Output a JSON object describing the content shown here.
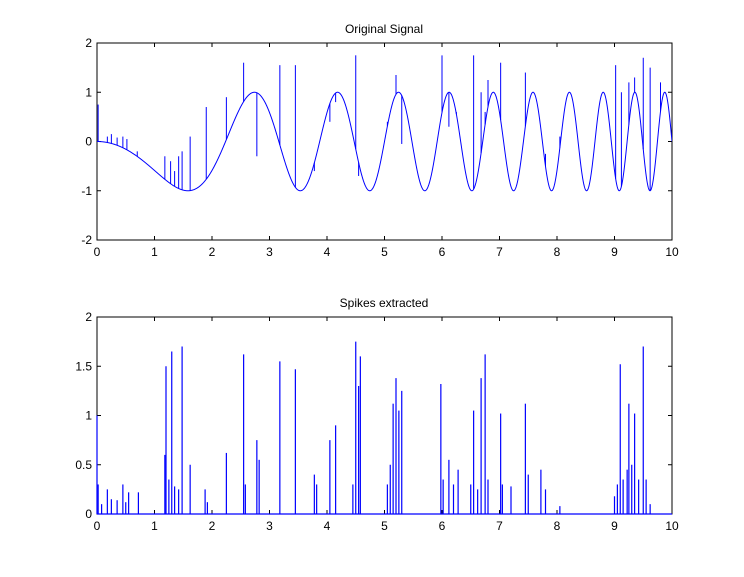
{
  "chart_data": [
    {
      "type": "line",
      "title": "Original Signal",
      "xlabel": "",
      "ylabel": "",
      "xlim": [
        0,
        10
      ],
      "ylim": [
        -2,
        2
      ],
      "x_ticks": [
        0,
        1,
        2,
        3,
        4,
        5,
        6,
        7,
        8,
        9,
        10
      ],
      "y_ticks": [
        -2,
        -1,
        0,
        1,
        2
      ],
      "grid": false,
      "line_color": "#0000ff",
      "series": [
        {
          "signal": "chirp sinusoid sin(0.2*pi*t^2 + pi) with added spikes",
          "x_samples": [
            0,
            0.5,
            1.0,
            1.25,
            1.5,
            2.0,
            2.24,
            2.5,
            2.8,
            3.0,
            3.35,
            3.5,
            3.87,
            4.0,
            4.18,
            4.5,
            4.84,
            5.0,
            5.4,
            5.5,
            6.0,
            6.2,
            6.5,
            6.8,
            7.0,
            7.5,
            8.0,
            8.5,
            9.0,
            9.5,
            10.0
          ],
          "y_samples": [
            0.0,
            -0.16,
            -0.59,
            -0.82,
            -0.97,
            -0.59,
            0.0,
            0.7,
            0.98,
            0.59,
            0.0,
            -0.59,
            -0.95,
            -0.59,
            0.0,
            0.83,
            0.51,
            -0.59,
            0.95,
            0.59,
            0.0,
            -0.8,
            -0.59,
            0.2,
            0.59,
            -0.59,
            0.0,
            -0.59,
            -0.59,
            -0.59,
            0.0
          ]
        }
      ],
      "spikes": [
        {
          "x": 0.02,
          "y": 0.75
        },
        {
          "x": 0.18,
          "y": 0.1
        },
        {
          "x": 0.25,
          "y": 0.15
        },
        {
          "x": 0.35,
          "y": 0.08
        },
        {
          "x": 0.45,
          "y": 0.1
        },
        {
          "x": 0.52,
          "y": 0.05
        },
        {
          "x": 0.7,
          "y": -0.2
        },
        {
          "x": 1.18,
          "y": -0.3
        },
        {
          "x": 1.28,
          "y": -0.4
        },
        {
          "x": 1.35,
          "y": -0.6
        },
        {
          "x": 1.42,
          "y": -0.3
        },
        {
          "x": 1.48,
          "y": -0.2
        },
        {
          "x": 1.62,
          "y": 0.1
        },
        {
          "x": 1.9,
          "y": 0.7
        },
        {
          "x": 2.25,
          "y": 0.9
        },
        {
          "x": 2.55,
          "y": 1.6
        },
        {
          "x": 2.78,
          "y": -0.3
        },
        {
          "x": 3.18,
          "y": 1.55
        },
        {
          "x": 3.45,
          "y": 1.55
        },
        {
          "x": 3.78,
          "y": -0.6
        },
        {
          "x": 4.05,
          "y": 0.4
        },
        {
          "x": 4.15,
          "y": 0.8
        },
        {
          "x": 4.5,
          "y": 1.75
        },
        {
          "x": 4.55,
          "y": -0.7
        },
        {
          "x": 5.05,
          "y": 0.4
        },
        {
          "x": 5.2,
          "y": 1.35
        },
        {
          "x": 5.3,
          "y": -0.05
        },
        {
          "x": 6.0,
          "y": 1.75
        },
        {
          "x": 6.12,
          "y": 0.3
        },
        {
          "x": 6.25,
          "y": 0.6
        },
        {
          "x": 6.55,
          "y": 1.75
        },
        {
          "x": 6.68,
          "y": 1.0
        },
        {
          "x": 6.75,
          "y": 0.6
        },
        {
          "x": 6.8,
          "y": 1.25
        },
        {
          "x": 7.02,
          "y": 1.6
        },
        {
          "x": 7.45,
          "y": 1.4
        },
        {
          "x": 7.8,
          "y": -0.25
        },
        {
          "x": 8.05,
          "y": 0.1
        },
        {
          "x": 9.02,
          "y": 1.55
        },
        {
          "x": 9.12,
          "y": 1.0
        },
        {
          "x": 9.25,
          "y": 1.2
        },
        {
          "x": 9.35,
          "y": 1.3
        },
        {
          "x": 9.5,
          "y": 1.7
        },
        {
          "x": 9.62,
          "y": 1.5
        },
        {
          "x": 9.8,
          "y": 1.2
        }
      ]
    },
    {
      "type": "line",
      "title": "Spikes extracted",
      "xlabel": "",
      "ylabel": "",
      "xlim": [
        0,
        10
      ],
      "ylim": [
        0,
        2
      ],
      "x_ticks": [
        0,
        1,
        2,
        3,
        4,
        5,
        6,
        7,
        8,
        9,
        10
      ],
      "y_ticks": [
        0,
        0.5,
        1,
        1.5,
        2
      ],
      "y_tick_labels": [
        "0",
        "0.5",
        "1",
        "1.5",
        "2"
      ],
      "grid": false,
      "line_color": "#0000ff",
      "series": [
        {
          "x": [
            0.0,
            0.02,
            0.08,
            0.18,
            0.25,
            0.35,
            0.45,
            0.5,
            0.55,
            0.72,
            1.18,
            1.2,
            1.25,
            1.3,
            1.35,
            1.42,
            1.48,
            1.62,
            1.88,
            1.92,
            2.25,
            2.55,
            2.58,
            2.78,
            2.82,
            3.18,
            3.45,
            3.78,
            3.82,
            4.05,
            4.15,
            4.45,
            4.5,
            4.55,
            4.58,
            5.05,
            5.1,
            5.15,
            5.2,
            5.25,
            5.3,
            5.98,
            6.02,
            6.12,
            6.2,
            6.28,
            6.5,
            6.55,
            6.62,
            6.68,
            6.75,
            6.8,
            7.02,
            7.05,
            7.2,
            7.45,
            7.5,
            7.72,
            7.8,
            8.05,
            9.0,
            9.05,
            9.1,
            9.15,
            9.22,
            9.25,
            9.3,
            9.35,
            9.42,
            9.5,
            9.55,
            9.62
          ],
          "values": [
            1.0,
            0.3,
            0.1,
            0.25,
            0.15,
            0.14,
            0.3,
            0.12,
            0.22,
            0.22,
            0.6,
            1.5,
            0.35,
            1.65,
            0.28,
            0.25,
            1.7,
            0.5,
            0.25,
            0.12,
            0.62,
            1.62,
            0.3,
            0.75,
            0.55,
            1.55,
            1.47,
            0.4,
            0.3,
            0.75,
            0.9,
            0.3,
            1.75,
            1.3,
            1.6,
            0.3,
            0.5,
            1.12,
            1.38,
            1.05,
            1.25,
            1.32,
            0.35,
            0.55,
            0.3,
            0.45,
            0.3,
            1.05,
            0.25,
            1.38,
            1.62,
            0.35,
            1.02,
            0.3,
            0.28,
            1.12,
            0.4,
            0.45,
            0.25,
            0.08,
            0.18,
            0.3,
            1.52,
            0.35,
            0.45,
            1.12,
            0.5,
            1.02,
            0.35,
            1.7,
            0.35,
            0.1
          ]
        }
      ]
    }
  ]
}
